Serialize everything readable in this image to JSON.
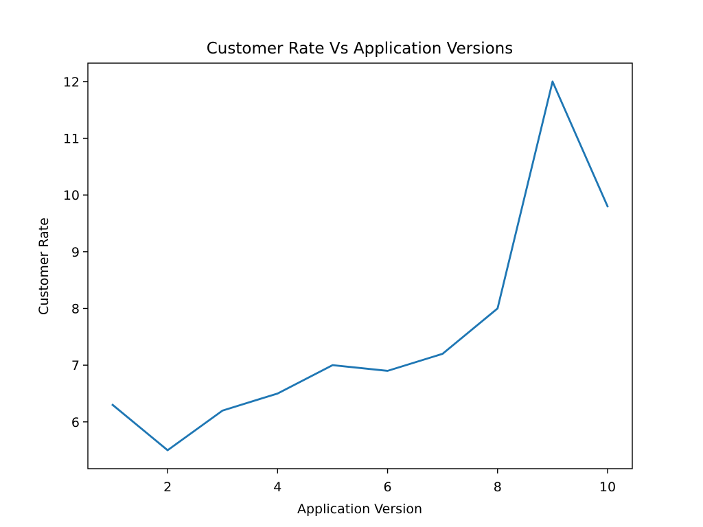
{
  "chart_data": {
    "type": "line",
    "title": "Customer Rate Vs Application Versions",
    "xlabel": "Application Version",
    "ylabel": "Customer Rate",
    "x": [
      1,
      2,
      3,
      4,
      5,
      6,
      7,
      8,
      9,
      10
    ],
    "series": [
      {
        "values": [
          6.3,
          5.5,
          6.2,
          6.5,
          7.0,
          6.9,
          7.2,
          8.0,
          12.0,
          9.8
        ],
        "color": "#1f77b4"
      }
    ],
    "xlim": [
      0.55,
      10.45
    ],
    "ylim": [
      5.175,
      12.325
    ],
    "xticks": [
      2,
      4,
      6,
      8,
      10
    ],
    "yticks": [
      6,
      7,
      8,
      9,
      10,
      11,
      12
    ],
    "grid": false,
    "legend": "none"
  }
}
